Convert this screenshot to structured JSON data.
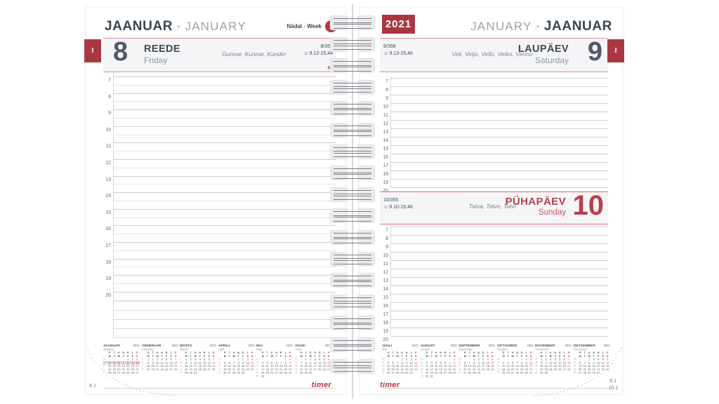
{
  "shared": {
    "dot": "·",
    "logo": "timer",
    "sun_icon": "☼",
    "hours": [
      "7",
      "8",
      "9",
      "10",
      "11",
      "12",
      "13",
      "14",
      "15",
      "16",
      "17",
      "18",
      "19",
      "20"
    ]
  },
  "colors": {
    "accent_red": "#a93742",
    "slate": "#4e596b",
    "band_line": "#d68b92"
  },
  "left": {
    "title_et": "JAANUAR",
    "title_en": "JANUARY",
    "week_label": "Nädal · Week",
    "week_number": "1",
    "month_tab": "I",
    "page_number": "8.1",
    "day": {
      "number": "8",
      "name_et": "REEDE",
      "name_en": "Friday",
      "name_days": "Gunnar, Kunnar, Kunder",
      "day_of_year": "8/357",
      "sun_times": "9.12-15.44",
      "note": "RU"
    }
  },
  "right": {
    "year_badge": "2021",
    "title_en": "JANUARY",
    "title_et": "JAANUAR",
    "month_tab": "I",
    "page_number_sat": "9.1",
    "page_number_sun": "10.1",
    "saturday": {
      "number": "9",
      "name_et": "LAUPÄEV",
      "name_en": "Saturday",
      "name_days": "Veli, Veljo, Vello, Velko, Venno",
      "day_of_year": "9/356",
      "sun_times": "9.13-15.46"
    },
    "sunday": {
      "number": "10",
      "name_et": "PÜHAPÄEV",
      "name_en": "Sunday",
      "name_days": "Talva, Talve, Talvi",
      "day_of_year": "10/355",
      "sun_times": "9.10-15.48"
    }
  },
  "mini_calendars": {
    "weekdays_et": [
      "E",
      "T",
      "K",
      "N",
      "R",
      "L",
      "P"
    ],
    "weekdays_en": [
      "M",
      "T",
      "W",
      "T",
      "F",
      "S",
      "S"
    ],
    "left": [
      {
        "et": "JAANUAR",
        "en": "January",
        "year": "2021",
        "red": [
          1,
          3,
          10,
          17,
          24,
          31
        ],
        "weeks": [
          {
            "n": "53",
            "d": [
              "",
              "",
              "",
              "",
              "1",
              "2",
              "3"
            ]
          },
          {
            "n": "1",
            "d": [
              "4",
              "5",
              "6",
              "7",
              "8",
              "9",
              "10"
            ],
            "hl": true
          },
          {
            "n": "2",
            "d": [
              "11",
              "12",
              "13",
              "14",
              "15",
              "16",
              "17"
            ]
          },
          {
            "n": "3",
            "d": [
              "18",
              "19",
              "20",
              "21",
              "22",
              "23",
              "24"
            ]
          },
          {
            "n": "4",
            "d": [
              "25",
              "26",
              "27",
              "28",
              "29",
              "30",
              "31"
            ]
          }
        ]
      },
      {
        "et": "VEEBRUAR",
        "en": "February",
        "year": "2021",
        "red": [
          7,
          14,
          21,
          24,
          28
        ],
        "weeks": [
          {
            "n": "5",
            "d": [
              "1",
              "2",
              "3",
              "4",
              "5",
              "6",
              "7"
            ]
          },
          {
            "n": "6",
            "d": [
              "8",
              "9",
              "10",
              "11",
              "12",
              "13",
              "14"
            ]
          },
          {
            "n": "7",
            "d": [
              "15",
              "16",
              "17",
              "18",
              "19",
              "20",
              "21"
            ]
          },
          {
            "n": "8",
            "d": [
              "22",
              "23",
              "24",
              "25",
              "26",
              "27",
              "28"
            ]
          }
        ]
      },
      {
        "et": "MÄRTS",
        "en": "March",
        "year": "2021",
        "red": [
          7,
          14,
          21,
          28
        ],
        "weeks": [
          {
            "n": "9",
            "d": [
              "1",
              "2",
              "3",
              "4",
              "5",
              "6",
              "7"
            ]
          },
          {
            "n": "10",
            "d": [
              "8",
              "9",
              "10",
              "11",
              "12",
              "13",
              "14"
            ]
          },
          {
            "n": "11",
            "d": [
              "15",
              "16",
              "17",
              "18",
              "19",
              "20",
              "21"
            ]
          },
          {
            "n": "12",
            "d": [
              "22",
              "23",
              "24",
              "25",
              "26",
              "27",
              "28"
            ]
          },
          {
            "n": "13",
            "d": [
              "29",
              "30",
              "31",
              "",
              "",
              "",
              ""
            ]
          }
        ]
      },
      {
        "et": "APRILL",
        "en": "April",
        "year": "2021",
        "red": [
          2,
          4,
          11,
          18,
          25
        ],
        "weeks": [
          {
            "n": "13",
            "d": [
              "",
              "",
              "",
              "1",
              "2",
              "3",
              "4"
            ]
          },
          {
            "n": "14",
            "d": [
              "5",
              "6",
              "7",
              "8",
              "9",
              "10",
              "11"
            ]
          },
          {
            "n": "15",
            "d": [
              "12",
              "13",
              "14",
              "15",
              "16",
              "17",
              "18"
            ]
          },
          {
            "n": "16",
            "d": [
              "19",
              "20",
              "21",
              "22",
              "23",
              "24",
              "25"
            ]
          },
          {
            "n": "17",
            "d": [
              "26",
              "27",
              "28",
              "29",
              "30",
              "",
              ""
            ]
          }
        ]
      },
      {
        "et": "MAI",
        "en": "May",
        "year": "2021",
        "red": [
          1,
          2,
          9,
          16,
          23,
          30
        ],
        "weeks": [
          {
            "n": "17",
            "d": [
              "",
              "",
              "",
              "",
              "",
              "1",
              "2"
            ]
          },
          {
            "n": "18",
            "d": [
              "3",
              "4",
              "5",
              "6",
              "7",
              "8",
              "9"
            ]
          },
          {
            "n": "19",
            "d": [
              "10",
              "11",
              "12",
              "13",
              "14",
              "15",
              "16"
            ]
          },
          {
            "n": "20",
            "d": [
              "17",
              "18",
              "19",
              "20",
              "21",
              "22",
              "23"
            ]
          },
          {
            "n": "21",
            "d": [
              "24",
              "25",
              "26",
              "27",
              "28",
              "29",
              "30"
            ]
          },
          {
            "n": "22",
            "d": [
              "31",
              "",
              "",
              "",
              "",
              "",
              ""
            ]
          }
        ]
      },
      {
        "et": "JUUNI",
        "en": "June",
        "year": "2021",
        "red": [
          6,
          13,
          20,
          23,
          24,
          27
        ],
        "weeks": [
          {
            "n": "22",
            "d": [
              "",
              "1",
              "2",
              "3",
              "4",
              "5",
              "6"
            ]
          },
          {
            "n": "23",
            "d": [
              "7",
              "8",
              "9",
              "10",
              "11",
              "12",
              "13"
            ]
          },
          {
            "n": "24",
            "d": [
              "14",
              "15",
              "16",
              "17",
              "18",
              "19",
              "20"
            ]
          },
          {
            "n": "25",
            "d": [
              "21",
              "22",
              "23",
              "24",
              "25",
              "26",
              "27"
            ]
          },
          {
            "n": "26",
            "d": [
              "28",
              "29",
              "30",
              "",
              "",
              "",
              ""
            ]
          }
        ]
      }
    ],
    "right": [
      {
        "et": "JUULI",
        "en": "July",
        "year": "2021",
        "red": [
          4,
          11,
          18,
          25
        ],
        "weeks": [
          {
            "n": "26",
            "d": [
              "",
              "",
              "",
              "1",
              "2",
              "3",
              "4"
            ]
          },
          {
            "n": "27",
            "d": [
              "5",
              "6",
              "7",
              "8",
              "9",
              "10",
              "11"
            ]
          },
          {
            "n": "28",
            "d": [
              "12",
              "13",
              "14",
              "15",
              "16",
              "17",
              "18"
            ]
          },
          {
            "n": "29",
            "d": [
              "19",
              "20",
              "21",
              "22",
              "23",
              "24",
              "25"
            ]
          },
          {
            "n": "30",
            "d": [
              "26",
              "27",
              "28",
              "29",
              "30",
              "31",
              ""
            ]
          }
        ]
      },
      {
        "et": "AUGUST",
        "en": "August",
        "year": "2021",
        "red": [
          1,
          8,
          15,
          20,
          22,
          29
        ],
        "weeks": [
          {
            "n": "30",
            "d": [
              "",
              "",
              "",
              "",
              "",
              "",
              "1"
            ]
          },
          {
            "n": "31",
            "d": [
              "2",
              "3",
              "4",
              "5",
              "6",
              "7",
              "8"
            ]
          },
          {
            "n": "32",
            "d": [
              "9",
              "10",
              "11",
              "12",
              "13",
              "14",
              "15"
            ]
          },
          {
            "n": "33",
            "d": [
              "16",
              "17",
              "18",
              "19",
              "20",
              "21",
              "22"
            ]
          },
          {
            "n": "34",
            "d": [
              "23",
              "24",
              "25",
              "26",
              "27",
              "28",
              "29"
            ]
          },
          {
            "n": "35",
            "d": [
              "30",
              "31",
              "",
              "",
              "",
              "",
              ""
            ]
          }
        ]
      },
      {
        "et": "SEPTEMBER",
        "en": "September",
        "year": "2021",
        "red": [
          5,
          12,
          19,
          26
        ],
        "weeks": [
          {
            "n": "35",
            "d": [
              "",
              "",
              "1",
              "2",
              "3",
              "4",
              "5"
            ]
          },
          {
            "n": "36",
            "d": [
              "6",
              "7",
              "8",
              "9",
              "10",
              "11",
              "12"
            ]
          },
          {
            "n": "37",
            "d": [
              "13",
              "14",
              "15",
              "16",
              "17",
              "18",
              "19"
            ]
          },
          {
            "n": "38",
            "d": [
              "20",
              "21",
              "22",
              "23",
              "24",
              "25",
              "26"
            ]
          },
          {
            "n": "39",
            "d": [
              "27",
              "28",
              "29",
              "30",
              "",
              "",
              ""
            ]
          }
        ]
      },
      {
        "et": "OKTOOBER",
        "en": "October",
        "year": "2021",
        "red": [
          3,
          10,
          17,
          24,
          31
        ],
        "weeks": [
          {
            "n": "39",
            "d": [
              "",
              "",
              "",
              "",
              "1",
              "2",
              "3"
            ]
          },
          {
            "n": "40",
            "d": [
              "4",
              "5",
              "6",
              "7",
              "8",
              "9",
              "10"
            ]
          },
          {
            "n": "41",
            "d": [
              "11",
              "12",
              "13",
              "14",
              "15",
              "16",
              "17"
            ]
          },
          {
            "n": "42",
            "d": [
              "18",
              "19",
              "20",
              "21",
              "22",
              "23",
              "24"
            ]
          },
          {
            "n": "43",
            "d": [
              "25",
              "26",
              "27",
              "28",
              "29",
              "30",
              "31"
            ]
          }
        ]
      },
      {
        "et": "NOVEMBER",
        "en": "November",
        "year": "2021",
        "red": [
          7,
          14,
          21,
          28
        ],
        "weeks": [
          {
            "n": "44",
            "d": [
              "1",
              "2",
              "3",
              "4",
              "5",
              "6",
              "7"
            ]
          },
          {
            "n": "45",
            "d": [
              "8",
              "9",
              "10",
              "11",
              "12",
              "13",
              "14"
            ]
          },
          {
            "n": "46",
            "d": [
              "15",
              "16",
              "17",
              "18",
              "19",
              "20",
              "21"
            ]
          },
          {
            "n": "47",
            "d": [
              "22",
              "23",
              "24",
              "25",
              "26",
              "27",
              "28"
            ]
          },
          {
            "n": "48",
            "d": [
              "29",
              "30",
              "",
              "",
              "",
              "",
              ""
            ]
          }
        ]
      },
      {
        "et": "DETSEMBER",
        "en": "December",
        "year": "2021",
        "red": [
          5,
          12,
          19,
          24,
          25,
          26
        ],
        "weeks": [
          {
            "n": "48",
            "d": [
              "",
              "",
              "1",
              "2",
              "3",
              "4",
              "5"
            ]
          },
          {
            "n": "49",
            "d": [
              "6",
              "7",
              "8",
              "9",
              "10",
              "11",
              "12"
            ]
          },
          {
            "n": "50",
            "d": [
              "13",
              "14",
              "15",
              "16",
              "17",
              "18",
              "19"
            ]
          },
          {
            "n": "51",
            "d": [
              "20",
              "21",
              "22",
              "23",
              "24",
              "25",
              "26"
            ]
          },
          {
            "n": "52",
            "d": [
              "27",
              "28",
              "29",
              "30",
              "31",
              "",
              ""
            ]
          }
        ]
      }
    ]
  }
}
